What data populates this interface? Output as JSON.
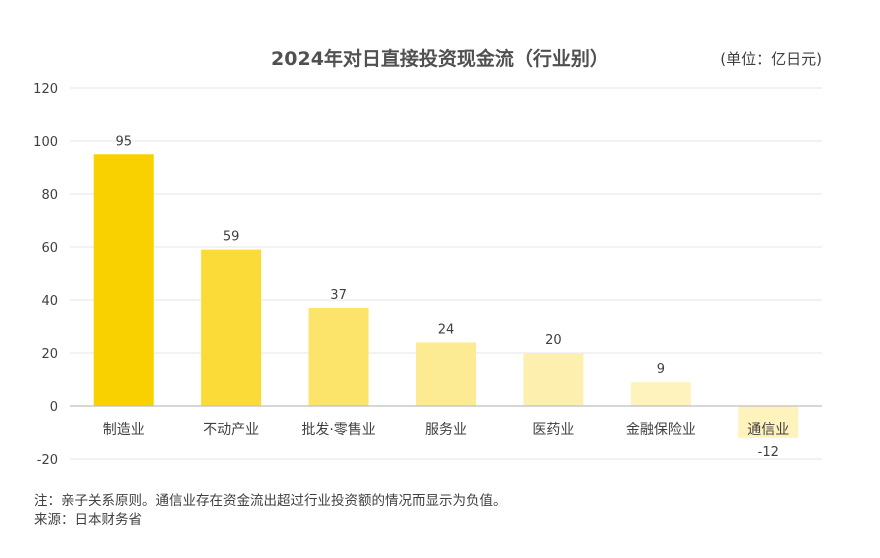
{
  "chart_data": {
    "type": "bar",
    "title": "2024年对日直接投资现金流（行业别）",
    "unit_label": "(单位：亿日元)",
    "categories": [
      "制造业",
      "不动产业",
      "批发·零售业",
      "服务业",
      "医药业",
      "金融保险业",
      "通信业"
    ],
    "values": [
      95,
      59,
      37,
      24,
      20,
      9,
      -12
    ],
    "value_labels": [
      "95",
      "59",
      "37",
      "24",
      "20",
      "9",
      "-12"
    ],
    "bar_colors": [
      "#F9D000",
      "#FBDB38",
      "#FCE36A",
      "#FDEB93",
      "#FDF0AE",
      "#FEF3BC",
      "#FEF3BC"
    ],
    "yticks": [
      "120",
      "100",
      "80",
      "60",
      "40",
      "20",
      "0",
      "-20"
    ],
    "ylim": [
      -20,
      120
    ],
    "xlabel": "",
    "ylabel": "",
    "grid": true,
    "legend": "none"
  },
  "notes": {
    "note": "注：亲子关系原则。通信业存在资金流出超过行业投资额的情况而显示为负值。",
    "source": "来源：日本财务省"
  }
}
